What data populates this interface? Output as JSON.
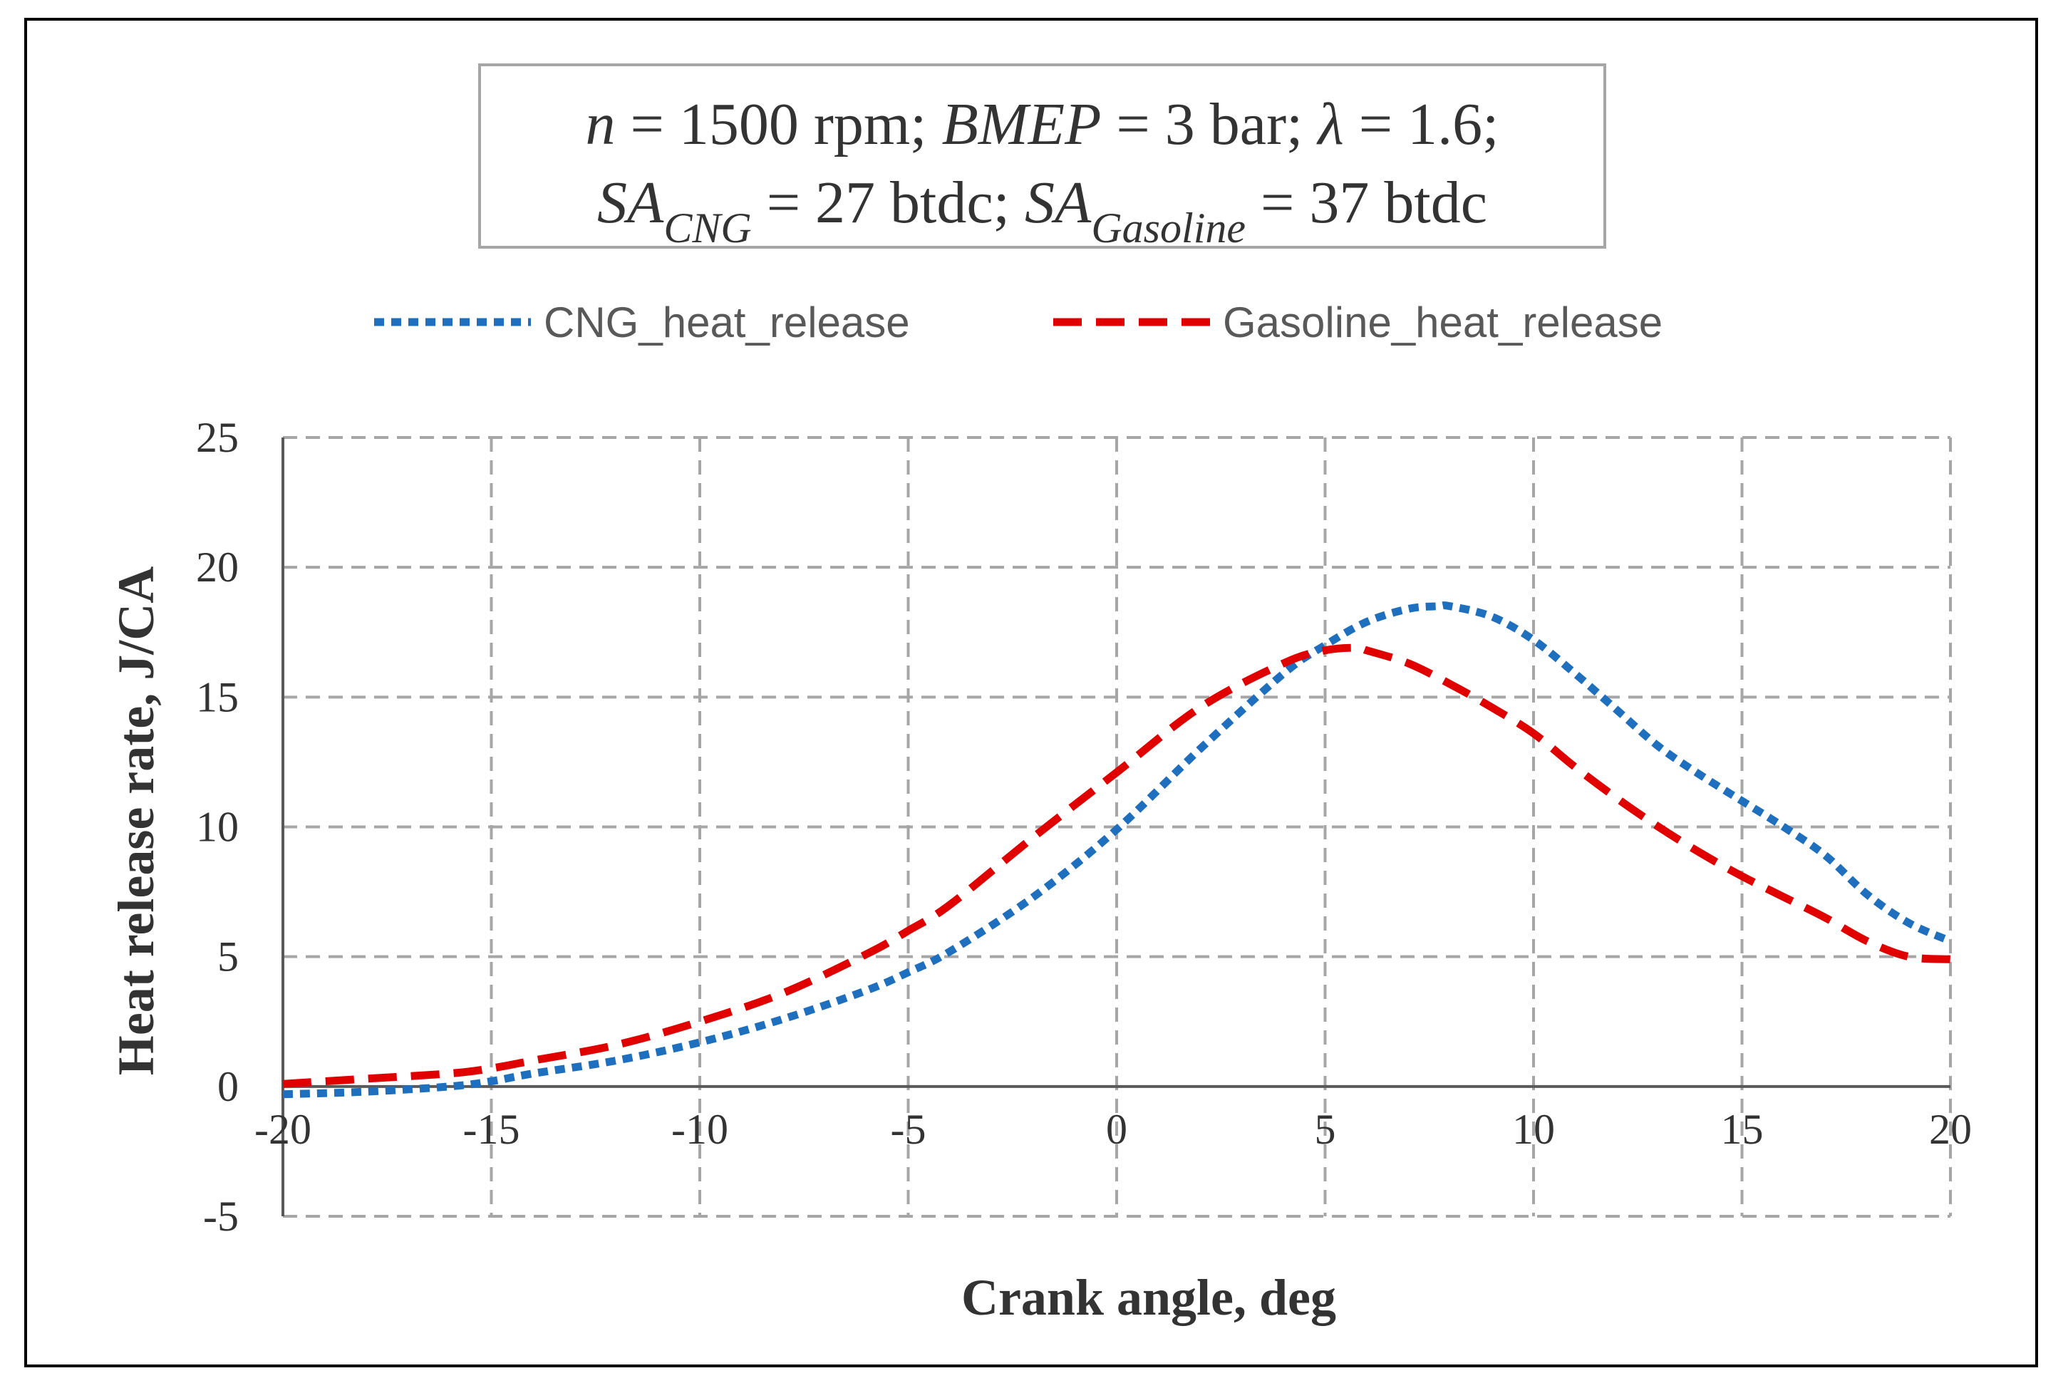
{
  "chart_data": {
    "type": "line",
    "annotation": {
      "line1": {
        "n_label": "n",
        "n_value": " = 1500 rpm; ",
        "bmep_label": "BMEP",
        "bmep_value": " = 3 bar; ",
        "lambda_label": "λ",
        "lambda_value": " = 1.6;"
      },
      "line2": {
        "sa_label": "SA",
        "cng_sub": "CNG",
        "cng_value": " = 27 btdc; ",
        "sa2_label": "SA",
        "gas_sub": "Gasoline",
        "gas_value": " = 37 btdc"
      }
    },
    "xlabel": "Crank angle, deg",
    "ylabel": "Heat release rate, J/CA",
    "xlim": [
      -20,
      20
    ],
    "ylim": [
      -5,
      25
    ],
    "x_ticks": [
      "-20",
      "-15",
      "-10",
      "-5",
      "0",
      "5",
      "10",
      "15",
      "20"
    ],
    "y_ticks": [
      "25",
      "20",
      "15",
      "10",
      "5",
      "0",
      "-5"
    ],
    "grid": true,
    "legend_position": "top",
    "series": [
      {
        "name": "CNG_heat_release",
        "color": "#1f6fbf",
        "x": [
          -20,
          -18,
          -16,
          -15,
          -14,
          -12,
          -10,
          -8,
          -6,
          -5,
          -4,
          -2,
          0,
          2,
          4,
          5,
          6,
          7,
          7.7,
          8,
          9,
          10,
          11,
          12,
          13,
          14,
          15,
          16,
          17,
          18,
          19,
          20
        ],
        "y": [
          -0.3,
          -0.2,
          0,
          0.2,
          0.5,
          1.0,
          1.7,
          2.6,
          3.7,
          4.4,
          5.2,
          7.3,
          9.9,
          13.0,
          15.9,
          17.0,
          17.9,
          18.4,
          18.5,
          18.5,
          18.1,
          17.2,
          15.9,
          14.5,
          13.1,
          12.0,
          11.0,
          10.0,
          8.9,
          7.4,
          6.3,
          5.6
        ]
      },
      {
        "name": "Gasoline_heat_release",
        "color": "#e00000",
        "x": [
          -20,
          -18,
          -16,
          -15,
          -14,
          -12,
          -10,
          -8,
          -6,
          -5,
          -4,
          -2,
          0,
          2,
          4,
          5,
          5.8,
          6,
          7,
          8,
          9,
          10,
          11,
          12,
          13,
          14,
          15,
          16,
          17,
          18,
          19,
          20
        ],
        "y": [
          0.1,
          0.3,
          0.5,
          0.7,
          1.0,
          1.6,
          2.5,
          3.6,
          5.1,
          6.0,
          7.0,
          9.6,
          12.1,
          14.6,
          16.3,
          16.8,
          16.9,
          16.8,
          16.3,
          15.5,
          14.6,
          13.6,
          12.3,
          11.1,
          10.0,
          9.0,
          8.1,
          7.3,
          6.5,
          5.6,
          5.0,
          4.9
        ]
      }
    ]
  }
}
